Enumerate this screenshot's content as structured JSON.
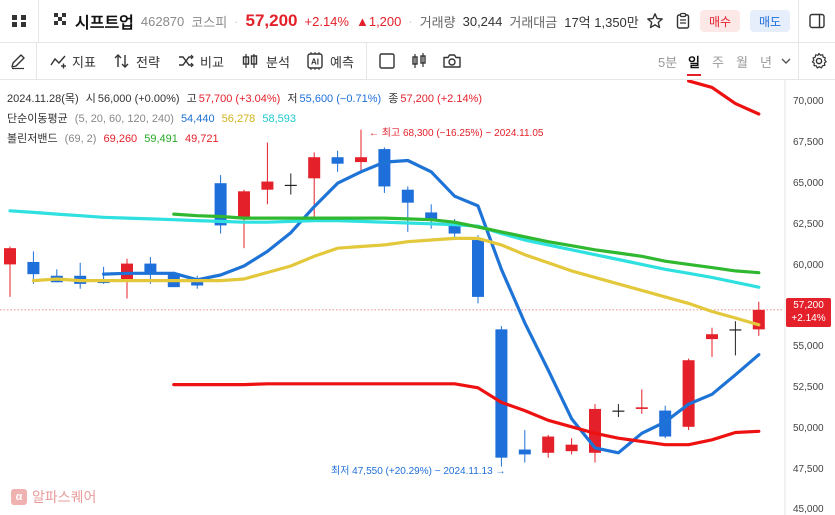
{
  "header": {
    "stock_name": "시프트업",
    "code": "462870",
    "market": "코스피",
    "price": "57,200",
    "change_pct": "+2.14%",
    "change_amt": "▲1,200",
    "volume_label": "거래량",
    "volume": "30,244",
    "amount_label": "거래대금",
    "amount": "17억 1,350만",
    "buy_label": "매수",
    "sell_label": "매도"
  },
  "toolbar": {
    "indicator": "지표",
    "strategy": "전략",
    "compare": "비교",
    "analysis": "분석",
    "ai_badge": "AI",
    "forecast": "예측",
    "periods": [
      "5분",
      "일",
      "주",
      "월",
      "년"
    ],
    "active_period": "일"
  },
  "legend": {
    "date": "2024.11.28(목)",
    "open_label": "시",
    "open": "56,000 (+0.00%)",
    "high_label": "고",
    "high": "57,700 (+3.04%)",
    "low_label": "저",
    "low": "55,600 (−0.71%)",
    "close_label": "종",
    "close": "57,200 (+2.14%)",
    "ma_label": "단순이동평균",
    "ma_params": "(5, 20, 60, 120, 240)",
    "ma_vals": [
      "54,440",
      "56,278",
      "58,593"
    ],
    "bb_label": "볼린저밴드",
    "bb_params": "(69, 2)",
    "bb_vals": [
      "69,260",
      "59,491",
      "49,721"
    ]
  },
  "annotations": {
    "high_note": "최고 68,300 (−16.25%) − 2024.11.05",
    "low_note": "최저 47,550 (+20.29%) − 2024.11.13"
  },
  "price_tag": {
    "price": "57,200",
    "pct": "+2.14%"
  },
  "logo": {
    "text": "알파스퀘어",
    "glyph": "α"
  },
  "colors": {
    "up": "#e4202a",
    "down": "#1e6fd9",
    "ma5": "#1e73d6",
    "ma20": "#e3c83c",
    "ma60": "#2ee0e0",
    "bb": "#30b830",
    "bb_lower": "#ee1111"
  },
  "chart_data": {
    "type": "candlestick",
    "ylim": [
      45000,
      71250
    ],
    "yticks": [
      "70,000",
      "67,500",
      "65,000",
      "62,500",
      "60,000",
      "55,000",
      "52,500",
      "50,000",
      "47,500",
      "45,000"
    ],
    "last_price": 57200,
    "candles": [
      {
        "o": 60000,
        "h": 61100,
        "l": 58000,
        "c": 61000
      },
      {
        "o": 60150,
        "h": 60800,
        "l": 58800,
        "c": 59400
      },
      {
        "o": 59300,
        "h": 59700,
        "l": 58900,
        "c": 58900
      },
      {
        "o": 59300,
        "h": 60100,
        "l": 58500,
        "c": 58800
      },
      {
        "o": 59050,
        "h": 59850,
        "l": 58800,
        "c": 58850
      },
      {
        "o": 59050,
        "h": 60350,
        "l": 57900,
        "c": 60050
      },
      {
        "o": 60050,
        "h": 60450,
        "l": 58800,
        "c": 59450
      },
      {
        "o": 59450,
        "h": 59550,
        "l": 58600,
        "c": 58600
      },
      {
        "o": 59000,
        "h": 59300,
        "l": 58500,
        "c": 58700
      },
      {
        "o": 65000,
        "h": 65500,
        "l": 61900,
        "c": 62400
      },
      {
        "o": 62800,
        "h": 64600,
        "l": 61000,
        "c": 64500
      },
      {
        "o": 64600,
        "h": 67500,
        "l": 63700,
        "c": 65100
      },
      {
        "o": 64900,
        "h": 65600,
        "l": 64300,
        "c": 64900
      },
      {
        "o": 65300,
        "h": 66900,
        "l": 62700,
        "c": 66600
      },
      {
        "o": 66600,
        "h": 67000,
        "l": 65700,
        "c": 66200
      },
      {
        "o": 66300,
        "h": 68300,
        "l": 65700,
        "c": 66600
      },
      {
        "o": 67100,
        "h": 67200,
        "l": 64400,
        "c": 64800
      },
      {
        "o": 64600,
        "h": 64800,
        "l": 62000,
        "c": 63800
      },
      {
        "o": 63200,
        "h": 63700,
        "l": 62200,
        "c": 62800
      },
      {
        "o": 62500,
        "h": 62800,
        "l": 61600,
        "c": 61900
      },
      {
        "o": 61500,
        "h": 61800,
        "l": 57600,
        "c": 58000
      },
      {
        "o": 56000,
        "h": 56200,
        "l": 47550,
        "c": 48100
      },
      {
        "o": 48600,
        "h": 49800,
        "l": 47800,
        "c": 48300
      },
      {
        "o": 48400,
        "h": 49500,
        "l": 48100,
        "c": 49400
      },
      {
        "o": 48500,
        "h": 49300,
        "l": 48300,
        "c": 48900
      },
      {
        "o": 48400,
        "h": 51400,
        "l": 47800,
        "c": 51100
      },
      {
        "o": 51000,
        "h": 51400,
        "l": 50600,
        "c": 51000
      },
      {
        "o": 51100,
        "h": 52300,
        "l": 50800,
        "c": 51200
      },
      {
        "o": 51000,
        "h": 51300,
        "l": 49300,
        "c": 49400
      },
      {
        "o": 50000,
        "h": 54200,
        "l": 49800,
        "c": 54100
      },
      {
        "o": 55400,
        "h": 56100,
        "l": 54300,
        "c": 55700
      },
      {
        "o": 56000,
        "h": 56500,
        "l": 54400,
        "c": 56000
      },
      {
        "o": 56000,
        "h": 57700,
        "l": 55600,
        "c": 57200
      }
    ],
    "series": [
      {
        "name": "5",
        "color": "#1e73d6",
        "values": [
          null,
          null,
          null,
          null,
          59400,
          59450,
          59450,
          59450,
          59050,
          59350,
          59900,
          60800,
          61950,
          63550,
          65000,
          65700,
          66300,
          66400,
          65700,
          64200,
          63600,
          59700,
          56400,
          53500,
          50500,
          48700,
          48400,
          49600,
          50300,
          51400,
          52000,
          53200,
          54440
        ]
      },
      {
        "name": "20",
        "color": "#e3c83c",
        "values": [
          null,
          59000,
          59100,
          59000,
          59000,
          59000,
          59000,
          59000,
          59000,
          59000,
          59100,
          59500,
          59900,
          60500,
          61000,
          61100,
          61200,
          61400,
          61500,
          61600,
          61600,
          61200,
          60600,
          60100,
          59600,
          59200,
          58800,
          58400,
          58000,
          57600,
          57100,
          56700,
          56278
        ]
      },
      {
        "name": "60",
        "color": "#2ee0e0",
        "values": [
          63300,
          63200,
          63100,
          63000,
          62900,
          62850,
          62800,
          62750,
          62700,
          62650,
          62600,
          62600,
          62650,
          62700,
          62700,
          62650,
          62600,
          62550,
          62500,
          62450,
          62350,
          61900,
          61500,
          61200,
          60900,
          60600,
          60300,
          60000,
          59700,
          59450,
          59200,
          58900,
          58593
        ]
      },
      {
        "name": "bb_upper",
        "color": "#30b830",
        "values": [
          null,
          null,
          null,
          null,
          null,
          null,
          null,
          63100,
          63000,
          62950,
          62850,
          62850,
          62850,
          62850,
          62850,
          62850,
          62850,
          62800,
          62750,
          62600,
          62300,
          62000,
          61700,
          61400,
          61150,
          60900,
          60700,
          60500,
          60200,
          60000,
          59800,
          59600,
          59491
        ]
      },
      {
        "name": "bb_lower",
        "color": "#ee1111",
        "values": [
          null,
          null,
          null,
          null,
          null,
          null,
          null,
          52600,
          52600,
          52600,
          52600,
          52650,
          52650,
          52650,
          52650,
          52650,
          52650,
          52650,
          52650,
          52650,
          52400,
          51500,
          51000,
          50400,
          50000,
          49600,
          49300,
          49100,
          48900,
          48900,
          49200,
          49650,
          49721
        ]
      },
      {
        "name": "upper_band",
        "color": "#ee1111",
        "values": [
          null,
          null,
          null,
          null,
          null,
          null,
          null,
          null,
          null,
          null,
          null,
          null,
          null,
          null,
          null,
          null,
          null,
          null,
          null,
          null,
          null,
          null,
          null,
          null,
          null,
          null,
          null,
          null,
          null,
          71300,
          70900,
          69900,
          69260
        ]
      }
    ]
  }
}
